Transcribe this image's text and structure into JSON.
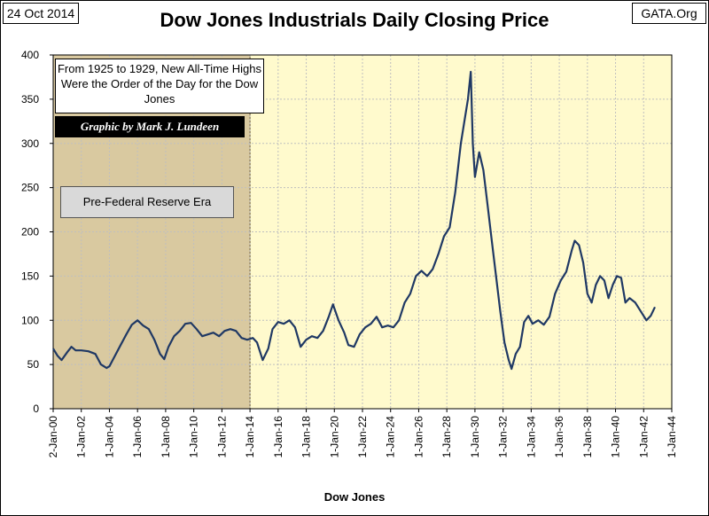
{
  "header": {
    "date": "24 Oct 2014",
    "source": "GATA.Org"
  },
  "chart_data": {
    "type": "line",
    "title": "Dow Jones Industrials Daily Closing Price",
    "xlabel": "Dow Jones",
    "ylabel": "",
    "ylim": [
      0,
      400
    ],
    "xlim": [
      1900,
      1944
    ],
    "y_ticks": [
      0,
      50,
      100,
      150,
      200,
      250,
      300,
      350,
      400
    ],
    "x_ticks": [
      {
        "label": "2-Jan-00",
        "x": 1900
      },
      {
        "label": "1-Jan-02",
        "x": 1902
      },
      {
        "label": "1-Jan-04",
        "x": 1904
      },
      {
        "label": "1-Jan-06",
        "x": 1906
      },
      {
        "label": "1-Jan-08",
        "x": 1908
      },
      {
        "label": "1-Jan-10",
        "x": 1910
      },
      {
        "label": "1-Jan-12",
        "x": 1912
      },
      {
        "label": "1-Jan-14",
        "x": 1914
      },
      {
        "label": "1-Jan-16",
        "x": 1916
      },
      {
        "label": "1-Jan-18",
        "x": 1918
      },
      {
        "label": "1-Jan-20",
        "x": 1920
      },
      {
        "label": "1-Jan-22",
        "x": 1922
      },
      {
        "label": "1-Jan-24",
        "x": 1924
      },
      {
        "label": "1-Jan-26",
        "x": 1926
      },
      {
        "label": "1-Jan-28",
        "x": 1928
      },
      {
        "label": "1-Jan-30",
        "x": 1930
      },
      {
        "label": "1-Jan-32",
        "x": 1932
      },
      {
        "label": "1-Jan-34",
        "x": 1934
      },
      {
        "label": "1-Jan-36",
        "x": 1936
      },
      {
        "label": "1-Jan-38",
        "x": 1938
      },
      {
        "label": "1-Jan-40",
        "x": 1940
      },
      {
        "label": "1-Jan-42",
        "x": 1942
      },
      {
        "label": "1-Jan-44",
        "x": 1944
      }
    ],
    "shaded_region": {
      "label": "Pre-Federal Reserve Era",
      "x_start": 1900,
      "x_end": 1914
    },
    "grid": true,
    "colors": {
      "line": "#1f3864",
      "plot_bg": "#fffacd",
      "shade_bg": "#d9c9a0"
    },
    "series": [
      {
        "x": [
          1900.0,
          1900.3,
          1900.6,
          1901.0,
          1901.3,
          1901.6,
          1902.0,
          1902.5,
          1903.0,
          1903.4,
          1903.8,
          1904.0,
          1904.4,
          1904.8,
          1905.2,
          1905.6,
          1906.0,
          1906.4,
          1906.8,
          1907.2,
          1907.6,
          1907.9,
          1908.2,
          1908.6,
          1909.0,
          1909.4,
          1909.8,
          1910.2,
          1910.6,
          1911.0,
          1911.4,
          1911.8,
          1912.2,
          1912.6,
          1913.0,
          1913.4,
          1913.8,
          1914.2,
          1914.5,
          1914.9,
          1915.3,
          1915.6,
          1916.0,
          1916.4,
          1916.8,
          1917.2,
          1917.6,
          1918.0,
          1918.4,
          1918.8,
          1919.2,
          1919.6,
          1919.9,
          1920.3,
          1920.7,
          1921.0,
          1921.4,
          1921.8,
          1922.2,
          1922.6,
          1923.0,
          1923.4,
          1923.8,
          1924.2,
          1924.6,
          1925.0,
          1925.4,
          1925.8,
          1926.2,
          1926.6,
          1927.0,
          1927.4,
          1927.8,
          1928.2,
          1928.6,
          1929.0,
          1929.3,
          1929.5,
          1929.7,
          1929.85,
          1930.0,
          1930.3,
          1930.6,
          1930.9,
          1931.2,
          1931.5,
          1931.8,
          1932.1,
          1932.4,
          1932.6,
          1932.9,
          1933.2,
          1933.5,
          1933.8,
          1934.1,
          1934.5,
          1934.9,
          1935.3,
          1935.7,
          1936.1,
          1936.5,
          1936.9,
          1937.1,
          1937.4,
          1937.7,
          1938.0,
          1938.3,
          1938.6,
          1938.9,
          1939.2,
          1939.5,
          1939.8,
          1940.1,
          1940.4,
          1940.7,
          1941.0,
          1941.4,
          1941.8,
          1942.2,
          1942.5,
          1942.8
        ],
        "y": [
          68,
          60,
          55,
          64,
          70,
          66,
          66,
          65,
          62,
          50,
          46,
          48,
          60,
          72,
          84,
          95,
          100,
          94,
          90,
          78,
          62,
          56,
          70,
          82,
          88,
          96,
          97,
          90,
          82,
          84,
          86,
          82,
          88,
          90,
          88,
          80,
          78,
          80,
          75,
          55,
          68,
          90,
          98,
          96,
          100,
          92,
          70,
          78,
          82,
          80,
          88,
          104,
          118,
          100,
          86,
          72,
          70,
          84,
          92,
          96,
          104,
          92,
          94,
          92,
          100,
          120,
          130,
          150,
          156,
          150,
          158,
          175,
          195,
          205,
          245,
          300,
          330,
          350,
          381,
          300,
          262,
          290,
          270,
          230,
          190,
          150,
          110,
          75,
          55,
          45,
          62,
          70,
          98,
          105,
          96,
          100,
          95,
          104,
          130,
          145,
          155,
          180,
          190,
          185,
          165,
          130,
          120,
          140,
          150,
          145,
          125,
          140,
          150,
          148,
          120,
          125,
          120,
          110,
          100,
          105,
          115
        ]
      }
    ]
  },
  "annotations": {
    "note": "From 1925 to 1929, New All-Time Highs Were the Order of the Day for the Dow Jones",
    "credit": "Graphic by Mark J. Lundeen",
    "era_label": "Pre-Federal Reserve Era"
  }
}
